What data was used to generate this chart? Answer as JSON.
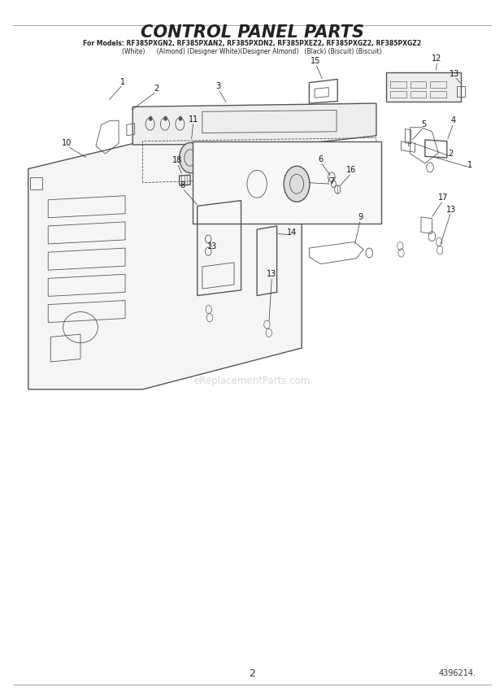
{
  "title": "CONTROL PANEL PARTS",
  "subtitle_line1": "For Models: RF385PXGN2, RF385PXAN2, RF385PXDN2, RF385PXEZ2, RF385PXGZ2, RF385PXGZ2",
  "subtitle_line2": "(White)      (Almond) (Designer White)(Designer Almond)   (Black) (Biscuit) (Biscuit)",
  "page_number": "2",
  "part_number": "4396214.",
  "watermark": "eReplacementParts.com",
  "bg_color": "#ffffff",
  "drawing_color": "#555555",
  "text_color": "#333333",
  "title_color": "#222222",
  "fig_width": 6.2,
  "fig_height": 8.56,
  "dpi": 100
}
